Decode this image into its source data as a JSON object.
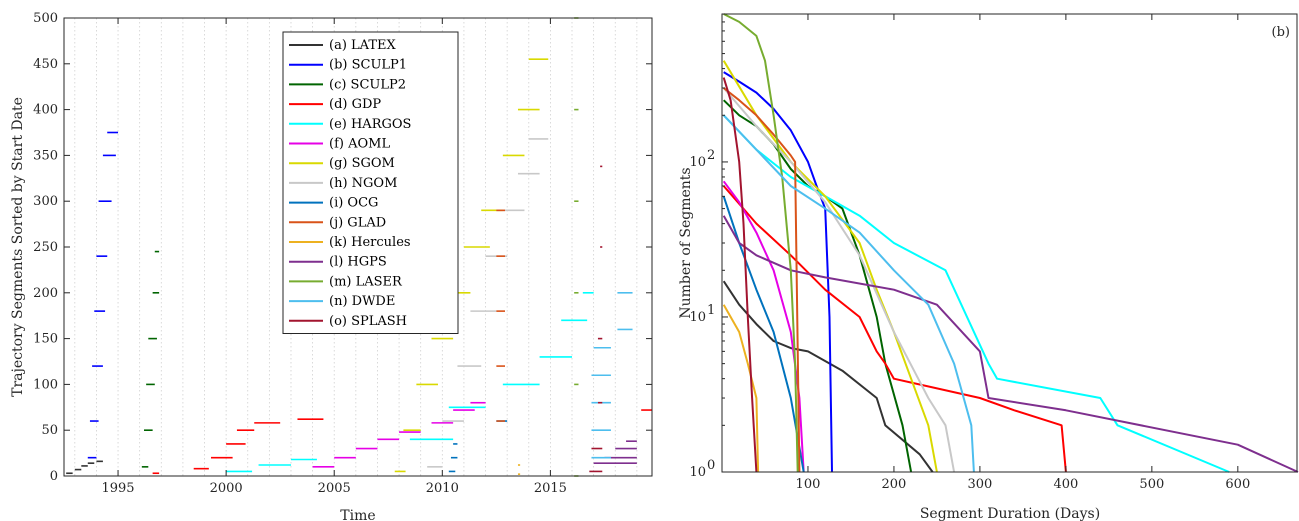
{
  "chart_data": [
    {
      "type": "scatter",
      "title": "",
      "xlabel": "Time",
      "ylabel": "Trajectory Segments Sorted by Start Date",
      "xlim": [
        1992.5,
        2019.7
      ],
      "ylim": [
        0,
        500
      ],
      "xticks": [
        1995,
        2000,
        2005,
        2010,
        2015
      ],
      "yticks": [
        0,
        50,
        100,
        150,
        200,
        250,
        300,
        350,
        400,
        450,
        500
      ],
      "grid": "vertical-dotted",
      "legend_position": "top-center",
      "series": [
        {
          "name": "(a) LATEX",
          "color": "#333333",
          "segments": [
            [
              1992.6,
              1992.9,
              3
            ],
            [
              1993.0,
              1993.3,
              7
            ],
            [
              1993.3,
              1993.6,
              11
            ],
            [
              1993.6,
              1993.9,
              14
            ],
            [
              1994.0,
              1994.3,
              16
            ]
          ]
        },
        {
          "name": "(b) SCULP1",
          "color": "#0000ff",
          "segments": [
            [
              1993.6,
              1994.0,
              20
            ],
            [
              1993.7,
              1994.1,
              60
            ],
            [
              1993.8,
              1994.3,
              120
            ],
            [
              1993.9,
              1994.4,
              180
            ],
            [
              1994.0,
              1994.5,
              240
            ],
            [
              1994.1,
              1994.7,
              300
            ],
            [
              1994.3,
              1994.9,
              350
            ],
            [
              1994.5,
              1995.0,
              375
            ]
          ]
        },
        {
          "name": "(c) SCULP2",
          "color": "#006400",
          "segments": [
            [
              1996.1,
              1996.4,
              10
            ],
            [
              1996.2,
              1996.6,
              50
            ],
            [
              1996.3,
              1996.7,
              100
            ],
            [
              1996.4,
              1996.8,
              150
            ],
            [
              1996.6,
              1996.9,
              200
            ],
            [
              1996.7,
              1996.9,
              245
            ]
          ]
        },
        {
          "name": "(d) GDP",
          "color": "#ff0000",
          "segments": [
            [
              1996.6,
              1996.9,
              3
            ],
            [
              1998.5,
              1999.2,
              8
            ],
            [
              1999.3,
              2000.3,
              20
            ],
            [
              2000.0,
              2000.9,
              35
            ],
            [
              2000.5,
              2001.3,
              50
            ],
            [
              2001.3,
              2002.5,
              58
            ],
            [
              2003.3,
              2004.5,
              62
            ],
            [
              2019.2,
              2019.7,
              72
            ]
          ]
        },
        {
          "name": "(e) HARGOS",
          "color": "#00ffff",
          "segments": [
            [
              2000.0,
              2001.2,
              5
            ],
            [
              2001.5,
              2003.0,
              12
            ],
            [
              2003.0,
              2004.2,
              18
            ],
            [
              2008.5,
              2010.5,
              40
            ],
            [
              2010.3,
              2012.0,
              75
            ],
            [
              2012.8,
              2014.5,
              100
            ],
            [
              2014.5,
              2016.0,
              130
            ],
            [
              2015.5,
              2016.7,
              170
            ],
            [
              2016.5,
              2017.0,
              200
            ]
          ]
        },
        {
          "name": "(f) AOML",
          "color": "#e600e6",
          "segments": [
            [
              2004.0,
              2005.0,
              10
            ],
            [
              2005.0,
              2006.0,
              20
            ],
            [
              2006.0,
              2007.0,
              30
            ],
            [
              2007.0,
              2008.0,
              40
            ],
            [
              2008.0,
              2009.0,
              48
            ],
            [
              2009.5,
              2010.5,
              58
            ],
            [
              2010.5,
              2011.5,
              72
            ],
            [
              2011.3,
              2012.0,
              80
            ]
          ]
        },
        {
          "name": "(g) SGOM",
          "color": "#d9d900",
          "segments": [
            [
              2007.8,
              2008.3,
              5
            ],
            [
              2008.2,
              2009.0,
              50
            ],
            [
              2008.8,
              2009.8,
              100
            ],
            [
              2009.5,
              2010.5,
              150
            ],
            [
              2010.3,
              2011.3,
              200
            ],
            [
              2011.0,
              2012.2,
              250
            ],
            [
              2011.8,
              2012.8,
              290
            ],
            [
              2012.8,
              2013.8,
              350
            ],
            [
              2013.5,
              2014.5,
              400
            ],
            [
              2014.0,
              2014.9,
              455
            ]
          ]
        },
        {
          "name": "(h) NGOM",
          "color": "#c8c8c8",
          "segments": [
            [
              2009.3,
              2010.0,
              10
            ],
            [
              2010.0,
              2011.0,
              60
            ],
            [
              2010.7,
              2011.8,
              120
            ],
            [
              2011.3,
              2012.5,
              180
            ],
            [
              2012.0,
              2013.0,
              240
            ],
            [
              2012.8,
              2013.8,
              290
            ],
            [
              2013.5,
              2014.5,
              330
            ],
            [
              2014.0,
              2014.9,
              368
            ]
          ]
        },
        {
          "name": "(i) OCG",
          "color": "#0072bd",
          "segments": [
            [
              2010.3,
              2010.6,
              5
            ],
            [
              2010.4,
              2010.7,
              20
            ],
            [
              2010.5,
              2010.7,
              35
            ],
            [
              2012.5,
              2013.0,
              60
            ]
          ]
        },
        {
          "name": "(j) GLAD",
          "color": "#d95319",
          "segments": [
            [
              2012.5,
              2012.9,
              60
            ],
            [
              2012.5,
              2012.9,
              120
            ],
            [
              2012.5,
              2012.9,
              180
            ],
            [
              2012.5,
              2012.9,
              240
            ],
            [
              2012.5,
              2012.9,
              290
            ]
          ]
        },
        {
          "name": "(k) Hercules",
          "color": "#edb120",
          "segments": [
            [
              2013.5,
              2013.6,
              2
            ],
            [
              2013.5,
              2013.6,
              12
            ]
          ]
        },
        {
          "name": "(l) HGPS",
          "color": "#7e2f8e",
          "segments": [
            [
              2017.0,
              2019.0,
              14
            ],
            [
              2017.5,
              2019.0,
              20
            ],
            [
              2018.0,
              2019.0,
              30
            ],
            [
              2018.5,
              2019.0,
              38
            ]
          ]
        },
        {
          "name": "(m) LASER",
          "color": "#77ac30",
          "segments": [
            [
              2016.1,
              2016.3,
              0
            ],
            [
              2016.1,
              2016.3,
              100
            ],
            [
              2016.1,
              2016.3,
              200
            ],
            [
              2016.1,
              2016.3,
              300
            ],
            [
              2016.1,
              2016.3,
              400
            ],
            [
              2016.1,
              2016.3,
              500
            ]
          ]
        },
        {
          "name": "(n) DWDE",
          "color": "#4dbeee",
          "segments": [
            [
              2016.9,
              2017.8,
              20
            ],
            [
              2016.9,
              2017.8,
              50
            ],
            [
              2016.9,
              2017.8,
              80
            ],
            [
              2016.9,
              2017.8,
              110
            ],
            [
              2017.0,
              2017.8,
              140
            ],
            [
              2018.1,
              2018.8,
              160
            ],
            [
              2018.1,
              2018.8,
              200
            ]
          ]
        },
        {
          "name": "(o) SPLASH",
          "color": "#a2142f",
          "segments": [
            [
              2016.8,
              2017.4,
              5
            ],
            [
              2016.9,
              2017.4,
              30
            ],
            [
              2017.2,
              2017.4,
              80
            ],
            [
              2017.2,
              2017.4,
              150
            ],
            [
              2017.3,
              2017.4,
              250
            ],
            [
              2017.3,
              2017.4,
              338
            ]
          ]
        }
      ]
    },
    {
      "type": "line",
      "panel_label": "(b)",
      "title": "",
      "xlabel": "Segment Duration (Days)",
      "ylabel": "Number of Segments",
      "yscale": "log",
      "xlim": [
        0,
        670
      ],
      "ylim": [
        1,
        900
      ],
      "xticks": [
        100,
        200,
        300,
        400,
        500,
        600
      ],
      "yticks": [
        1,
        10,
        100
      ],
      "ytick_labels": [
        "10^0",
        "10^1",
        "10^2"
      ],
      "grid": "off",
      "series": [
        {
          "name": "(a) LATEX",
          "color": "#333333",
          "x": [
            2,
            20,
            40,
            60,
            80,
            100,
            140,
            180,
            190,
            230,
            245
          ],
          "y": [
            17,
            12,
            9,
            7,
            6.3,
            6,
            4.5,
            3,
            2,
            1.3,
            1
          ]
        },
        {
          "name": "(b) SCULP1",
          "color": "#0000ff",
          "x": [
            2,
            20,
            40,
            60,
            80,
            100,
            110,
            120,
            125,
            128
          ],
          "y": [
            380,
            330,
            280,
            220,
            160,
            100,
            70,
            50,
            10,
            1
          ]
        },
        {
          "name": "(c) SCULP2",
          "color": "#006400",
          "x": [
            2,
            20,
            40,
            60,
            80,
            100,
            120,
            140,
            160,
            180,
            190,
            210,
            220
          ],
          "y": [
            250,
            200,
            170,
            130,
            90,
            70,
            60,
            50,
            25,
            10,
            5,
            2,
            1
          ]
        },
        {
          "name": "(d) GDP",
          "color": "#ff0000",
          "x": [
            2,
            40,
            80,
            120,
            160,
            180,
            190,
            200,
            300,
            340,
            395,
            400
          ],
          "y": [
            70,
            40,
            25,
            15,
            10,
            6,
            5,
            4,
            3,
            2.5,
            2,
            1
          ]
        },
        {
          "name": "(e) HARGOS",
          "color": "#00ffff",
          "x": [
            2,
            40,
            80,
            120,
            160,
            200,
            260,
            310,
            320,
            440,
            460,
            590
          ],
          "y": [
            200,
            120,
            80,
            60,
            45,
            30,
            20,
            5,
            4,
            3,
            2,
            1
          ]
        },
        {
          "name": "(f) AOML",
          "color": "#e600e6",
          "x": [
            2,
            20,
            40,
            60,
            80,
            90,
            95
          ],
          "y": [
            75,
            55,
            35,
            20,
            8,
            3,
            1
          ]
        },
        {
          "name": "(g) SGOM",
          "color": "#d9d900",
          "x": [
            2,
            40,
            80,
            120,
            160,
            180,
            200,
            220,
            240,
            250
          ],
          "y": [
            450,
            200,
            100,
            60,
            30,
            15,
            8,
            4,
            2,
            1
          ]
        },
        {
          "name": "(h) NGOM",
          "color": "#c8c8c8",
          "x": [
            2,
            40,
            80,
            120,
            160,
            200,
            240,
            260,
            270
          ],
          "y": [
            300,
            170,
            100,
            55,
            25,
            8,
            3,
            2,
            1
          ]
        },
        {
          "name": "(i) OCG",
          "color": "#0072bd",
          "x": [
            2,
            20,
            40,
            60,
            80,
            95
          ],
          "y": [
            60,
            30,
            15,
            8,
            3,
            1
          ]
        },
        {
          "name": "(j) GLAD",
          "color": "#d95319",
          "x": [
            2,
            20,
            40,
            60,
            80,
            85,
            90
          ],
          "y": [
            300,
            250,
            200,
            150,
            110,
            100,
            1
          ]
        },
        {
          "name": "(k) Hercules",
          "color": "#edb120",
          "x": [
            2,
            20,
            30,
            40,
            42
          ],
          "y": [
            12,
            8,
            5,
            3,
            1
          ]
        },
        {
          "name": "(l) HGPS",
          "color": "#7e2f8e",
          "x": [
            2,
            20,
            40,
            80,
            120,
            200,
            250,
            300,
            310,
            400,
            600,
            670
          ],
          "y": [
            45,
            30,
            25,
            20,
            18,
            15,
            12,
            6,
            3,
            2.5,
            1.5,
            1
          ]
        },
        {
          "name": "(m) LASER",
          "color": "#77ac30",
          "x": [
            2,
            20,
            40,
            50,
            60,
            70,
            80,
            85,
            88
          ],
          "y": [
            900,
            800,
            650,
            450,
            200,
            80,
            20,
            5,
            1
          ]
        },
        {
          "name": "(n) DWDE",
          "color": "#4dbeee",
          "x": [
            2,
            40,
            80,
            120,
            160,
            200,
            240,
            270,
            290,
            293
          ],
          "y": [
            200,
            120,
            70,
            50,
            35,
            20,
            12,
            5,
            2,
            1
          ]
        },
        {
          "name": "(o) SPLASH",
          "color": "#a2142f",
          "x": [
            2,
            10,
            20,
            25,
            30,
            35,
            40
          ],
          "y": [
            350,
            250,
            100,
            40,
            10,
            3,
            1
          ]
        }
      ]
    }
  ]
}
